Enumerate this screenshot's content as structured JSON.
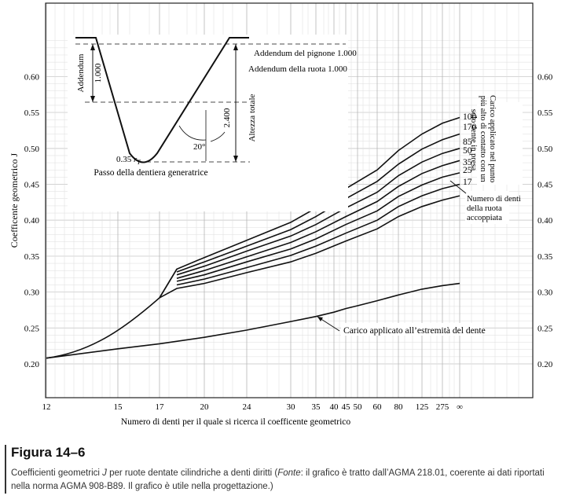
{
  "chart_data": {
    "type": "line",
    "ylabel": "Coefficente geometrico J",
    "xlabel": "Numero di denti per il quale si ricerca il coefficente geometrico",
    "x_ticks": [
      "12",
      "15",
      "17",
      "20",
      "24",
      "30",
      "35",
      "40",
      "45",
      "50",
      "60",
      "80",
      "125",
      "275",
      "∞"
    ],
    "y_ticks": [
      "0.20",
      "0.25",
      "0.30",
      "0.35",
      "0.40",
      "0.45",
      "0.50",
      "0.55",
      "0.60"
    ],
    "ylim": [
      0.2,
      0.65
    ],
    "grid": true,
    "series": [
      {
        "name": "1000",
        "x": [
          "17",
          "18",
          "20",
          "24",
          "30",
          "35",
          "45",
          "60",
          "80",
          "125",
          "275",
          "∞"
        ],
        "values": [
          0.292,
          0.332,
          0.348,
          0.372,
          0.397,
          0.417,
          0.444,
          0.47,
          0.497,
          0.52,
          0.535,
          0.543
        ]
      },
      {
        "name": "170",
        "x": [
          "18",
          "20",
          "24",
          "30",
          "35",
          "45",
          "60",
          "80",
          "125",
          "275",
          "∞"
        ],
        "values": [
          0.328,
          0.342,
          0.364,
          0.387,
          0.405,
          0.43,
          0.454,
          0.478,
          0.499,
          0.512,
          0.52
        ]
      },
      {
        "name": "85",
        "x": [
          "18",
          "20",
          "24",
          "30",
          "35",
          "45",
          "60",
          "80",
          "125",
          "275",
          "∞"
        ],
        "values": [
          0.324,
          0.336,
          0.357,
          0.378,
          0.394,
          0.417,
          0.439,
          0.462,
          0.481,
          0.493,
          0.5
        ]
      },
      {
        "name": "50",
        "x": [
          "18",
          "20",
          "24",
          "30",
          "35",
          "45",
          "60",
          "80",
          "125",
          "275",
          "∞"
        ],
        "values": [
          0.319,
          0.33,
          0.349,
          0.369,
          0.384,
          0.405,
          0.426,
          0.447,
          0.465,
          0.476,
          0.483
        ]
      },
      {
        "name": "35",
        "x": [
          "18",
          "20",
          "24",
          "30",
          "35",
          "45",
          "60",
          "80",
          "125",
          "275",
          "∞"
        ],
        "values": [
          0.315,
          0.324,
          0.342,
          0.36,
          0.374,
          0.394,
          0.413,
          0.433,
          0.449,
          0.46,
          0.466
        ]
      },
      {
        "name": "25",
        "x": [
          "18",
          "20",
          "24",
          "30",
          "35",
          "45",
          "60",
          "80",
          "125",
          "275",
          "∞"
        ],
        "values": [
          0.31,
          0.318,
          0.334,
          0.351,
          0.364,
          0.382,
          0.4,
          0.419,
          0.434,
          0.444,
          0.45
        ]
      },
      {
        "name": "17",
        "x": [
          "17",
          "18",
          "20",
          "24",
          "30",
          "35",
          "45",
          "60",
          "80",
          "125",
          "275",
          "∞"
        ],
        "values": [
          0.292,
          0.305,
          0.312,
          0.327,
          0.342,
          0.354,
          0.371,
          0.388,
          0.405,
          0.419,
          0.428,
          0.434
        ]
      },
      {
        "name": "Carico applicato all’estremità del dente",
        "x": [
          "12",
          "15",
          "17",
          "20",
          "24",
          "30",
          "35",
          "40",
          "45",
          "50",
          "60",
          "80",
          "125",
          "275",
          "∞"
        ],
        "values": [
          0.208,
          0.221,
          0.228,
          0.237,
          0.247,
          0.259,
          0.266,
          0.272,
          0.277,
          0.281,
          0.288,
          0.296,
          0.304,
          0.309,
          0.312
        ]
      }
    ],
    "lewis_curve": {
      "x": [
        "12",
        "15",
        "16",
        "17"
      ],
      "values": [
        0.208,
        0.245,
        0.268,
        0.292
      ]
    },
    "annotations": {
      "series_label_title": "Carico applicato nel punto più alto di contatto con un solo dente in presa",
      "mating_teeth": "Numero di denti della ruota accoppiata",
      "tip_load": "Carico applicato all’estremità del dente"
    },
    "inset": {
      "addendum_vertical": "Addendum",
      "addendum_value": "1.000",
      "pinion_addendum": "Addendum del pignone 1.000",
      "gear_addendum": "Addendum della ruota 1.000",
      "total_height": "Altezza totale",
      "total_height_value": "2.400",
      "angle": "20°",
      "radius_prefix": "0.35 ",
      "radius_symbol": "r",
      "radius_sub": "T",
      "caption": "Passo della dentiera generatrice"
    }
  },
  "figure": {
    "title": "Figura 14–6",
    "caption_pre": "Coefficienti geometrici ",
    "caption_J": "J",
    "caption_mid": " per ruote dentate cilindriche a denti diritti (",
    "caption_source_label": "Fonte",
    "caption_post": ": il grafico è tratto dall’AGMA 218.01, coerente ai dati riportati nella norma AGMA 908-B89. Il grafico è utile nella progettazione.)"
  },
  "colors": {
    "ink": "#111111",
    "grid": "#c8c8c8",
    "paper": "#ffffff"
  }
}
